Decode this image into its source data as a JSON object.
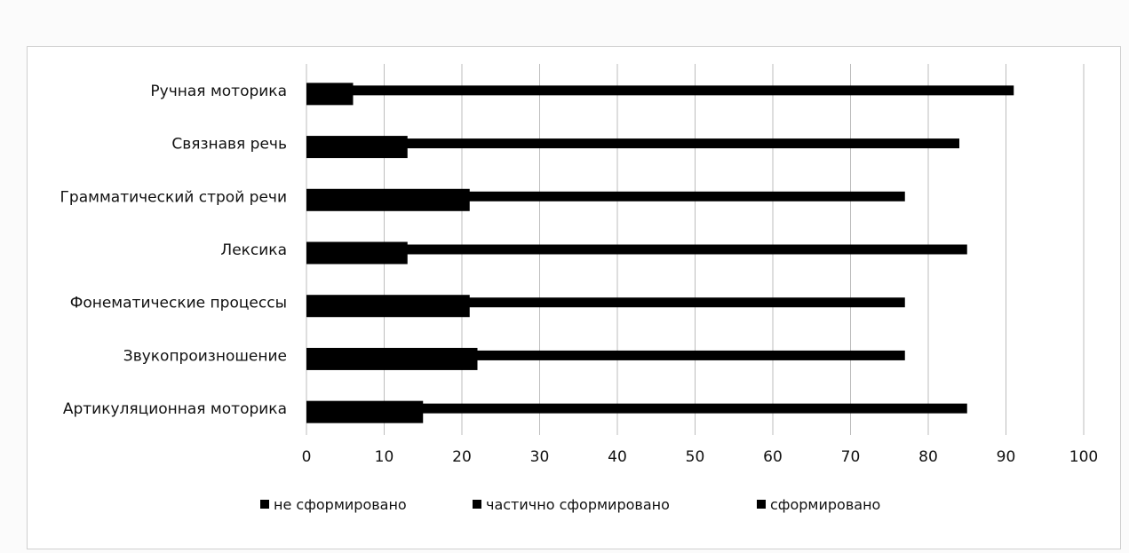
{
  "chart_data": {
    "type": "bar",
    "orientation": "horizontal",
    "categories": [
      "Ручная моторика",
      "Связнавя речь",
      "Грамматический строй речи",
      "Лексика",
      "Фонематические процессы",
      "Звукопроизношение",
      "Артикуляционная моторика"
    ],
    "series": [
      {
        "name": "не сформировано",
        "values": [
          6,
          13,
          21,
          13,
          21,
          22,
          15
        ],
        "color": "#000000"
      },
      {
        "name": "частично сформировано",
        "values": [
          91,
          84,
          77,
          85,
          77,
          77,
          85
        ],
        "color": "#000000"
      },
      {
        "name": "сформировано",
        "values": [
          0,
          0,
          0,
          0,
          0,
          0,
          0
        ],
        "color": "#000000"
      }
    ],
    "xlim": [
      0,
      100
    ],
    "xticks": [
      0,
      10,
      20,
      30,
      40,
      50,
      60,
      70,
      80,
      90,
      100
    ],
    "grid": true,
    "legend_position": "bottom",
    "title": "",
    "xlabel": "",
    "ylabel": ""
  }
}
